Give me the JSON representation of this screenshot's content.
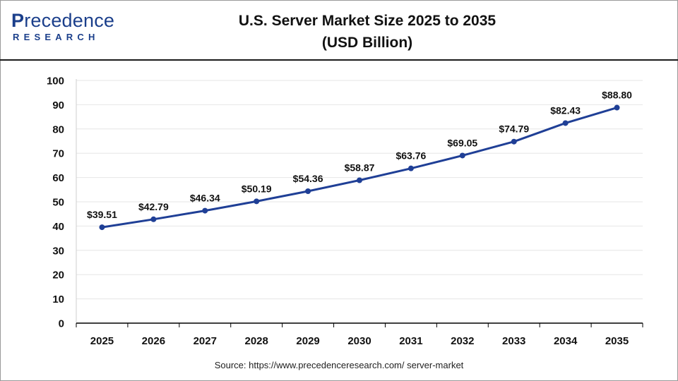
{
  "brand": {
    "logo_main": "recedence",
    "logo_initial": "P",
    "logo_sub": "RESEARCH"
  },
  "header": {
    "title_line1": "U.S. Server Market Size 2025 to 2035",
    "title_line2": "(USD Billion)"
  },
  "footer": {
    "source": "Source: https://www.precedenceresearch.com/ server-market"
  },
  "colors": {
    "line": "#1f3f96",
    "grid": "#e6e6e6",
    "axis": "#000000"
  },
  "chart_data": {
    "type": "line",
    "title": "U.S. Server Market Size 2025 to 2035 (USD Billion)",
    "categories": [
      "2025",
      "2026",
      "2027",
      "2028",
      "2029",
      "2030",
      "2031",
      "2032",
      "2033",
      "2034",
      "2035"
    ],
    "series": [
      {
        "values": [
          39.51,
          42.79,
          46.34,
          50.19,
          54.36,
          58.87,
          63.76,
          69.05,
          74.79,
          82.43,
          88.8
        ],
        "labels": [
          "$39.51",
          "$42.79",
          "$46.34",
          "$50.19",
          "$54.36",
          "$58.87",
          "$63.76",
          "$69.05",
          "$74.79",
          "$82.43",
          "$88.80"
        ]
      }
    ],
    "yticks": [
      "0",
      "10",
      "20",
      "30",
      "40",
      "50",
      "60",
      "70",
      "80",
      "90",
      "100"
    ],
    "ylim": [
      0,
      100
    ],
    "grid": true,
    "legend": "none"
  }
}
